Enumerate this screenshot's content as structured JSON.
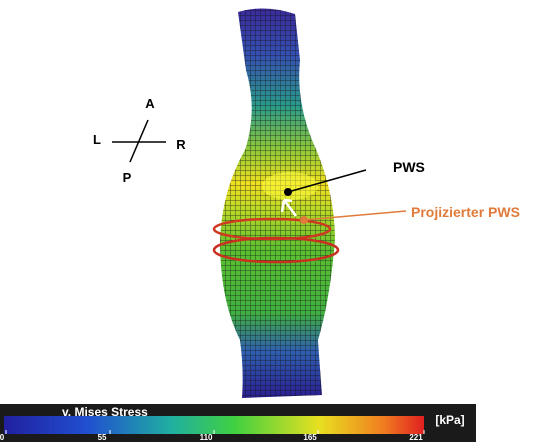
{
  "orientation": {
    "anterior": "A",
    "left": "L",
    "right": "R",
    "posterior": "P"
  },
  "annotations": {
    "pws": "PWS",
    "projected_pws": "Projizierter PWS"
  },
  "colorbar": {
    "title": "v. Mises Stress",
    "unit": "[kPa]",
    "ticks": [
      0,
      55,
      110,
      165,
      221
    ]
  }
}
